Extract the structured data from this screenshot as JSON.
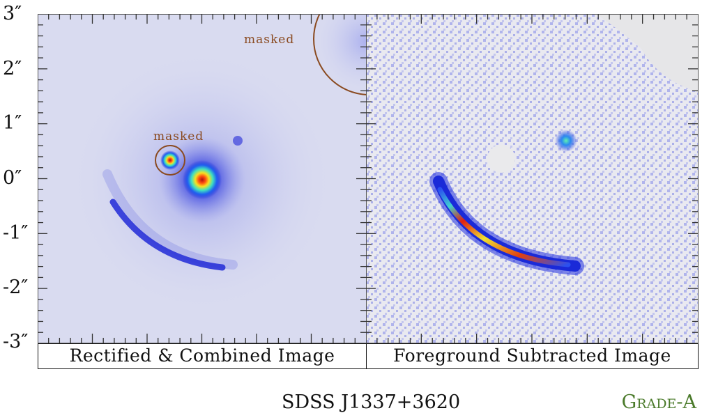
{
  "figure": {
    "object_name": "SDSS J1337+3620",
    "grade": "Grade-A",
    "grade_color": "#4a7a2a",
    "y_axis": {
      "unit": "arcsec",
      "tick_labels": [
        "3″",
        "2″",
        "1″",
        "0″",
        "-1″",
        "-2″",
        "-3″"
      ],
      "range": [
        -3,
        3
      ],
      "minor_tick_step": 0.2
    },
    "panels": [
      {
        "caption": "Rectified & Combined Image",
        "annotations": [
          {
            "label": "masked",
            "position": "top-right",
            "shape": "circle"
          },
          {
            "label": "masked",
            "position": "near-center",
            "shape": "circle"
          }
        ]
      },
      {
        "caption": "Foreground Subtracted Image"
      }
    ],
    "colors": {
      "mask_circle": "#8a4a20",
      "frame": "#555555",
      "background_left": "#d9dbf0",
      "background_right": "#eaeaec"
    }
  }
}
